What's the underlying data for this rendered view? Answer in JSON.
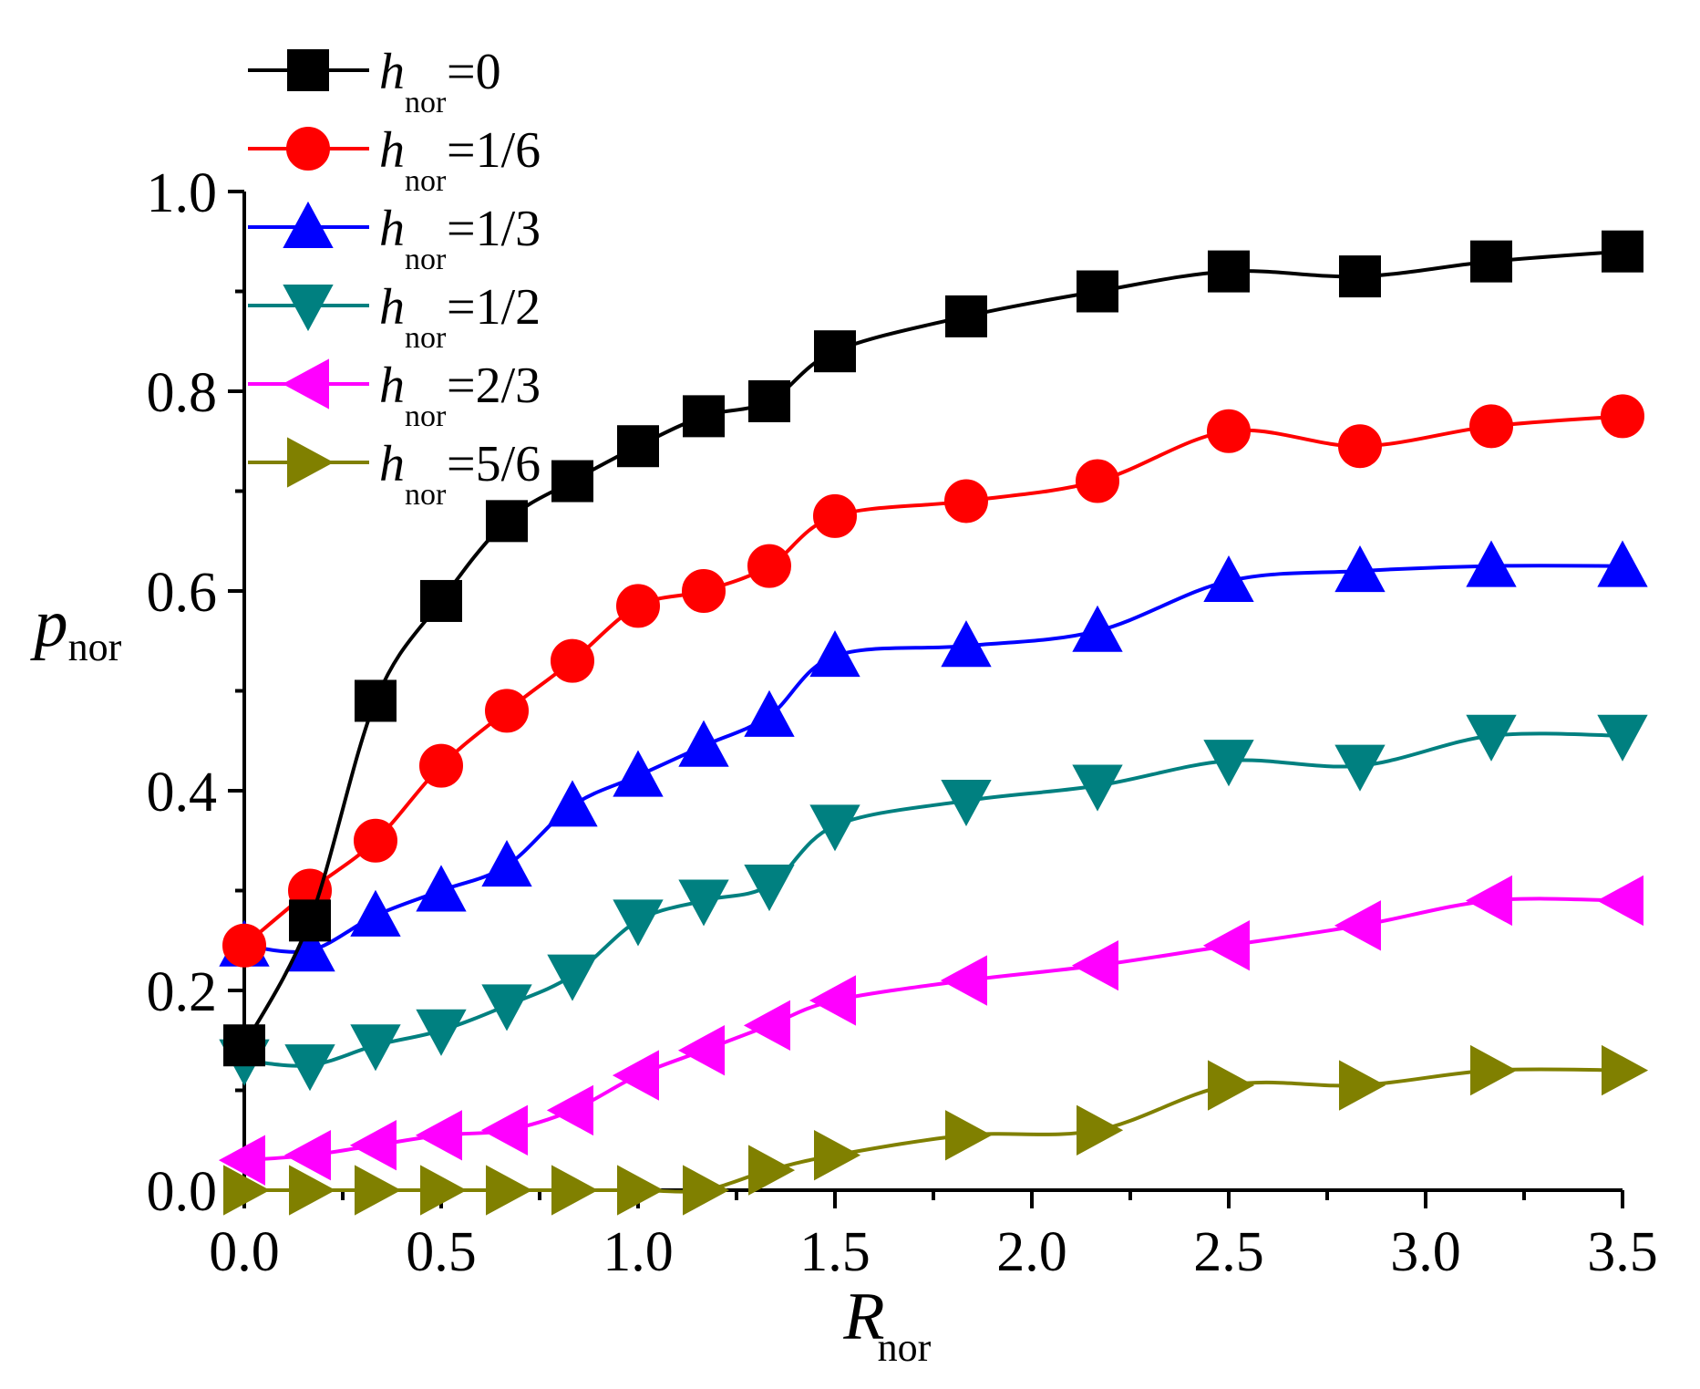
{
  "chart_data": {
    "type": "line",
    "title": "",
    "xlabel": {
      "main": "R",
      "sub": "nor"
    },
    "ylabel": {
      "main": "p",
      "sub": "nor"
    },
    "xlim": [
      0,
      3.5
    ],
    "ylim": [
      0,
      1.0
    ],
    "xticks": [
      "0.0",
      "0.5",
      "1.0",
      "1.5",
      "2.0",
      "2.5",
      "3.0",
      "3.5"
    ],
    "yticks": [
      "0.0",
      "0.2",
      "0.4",
      "0.6",
      "0.8",
      "1.0"
    ],
    "grid": false,
    "legend_position": "top-left",
    "x": [
      0,
      0.1667,
      0.3333,
      0.5,
      0.6667,
      0.8333,
      1.0,
      1.1667,
      1.3333,
      1.5,
      1.8333,
      2.1667,
      2.5,
      2.8333,
      3.1667,
      3.5
    ],
    "series": [
      {
        "name": "h_nor=0",
        "legend": {
          "h": "h",
          "sub": "nor",
          "val": "=0"
        },
        "color": "#000000",
        "marker": "square",
        "values": [
          0.145,
          0.27,
          0.49,
          0.59,
          0.67,
          0.71,
          0.745,
          0.775,
          0.79,
          0.84,
          0.875,
          0.9,
          0.92,
          0.915,
          0.93,
          0.94
        ]
      },
      {
        "name": "h_nor=1/6",
        "legend": {
          "h": "h",
          "sub": "nor",
          "val": "=1/6"
        },
        "color": "#ff0000",
        "marker": "circle",
        "values": [
          0.245,
          0.3,
          0.35,
          0.425,
          0.48,
          0.53,
          0.585,
          0.6,
          0.625,
          0.675,
          0.69,
          0.71,
          0.76,
          0.745,
          0.765,
          0.775
        ]
      },
      {
        "name": "h_nor=1/3",
        "legend": {
          "h": "h",
          "sub": "nor",
          "val": "=1/3"
        },
        "color": "#0000ff",
        "marker": "triangle-up",
        "values": [
          0.245,
          0.24,
          0.275,
          0.3,
          0.325,
          0.385,
          0.415,
          0.445,
          0.475,
          0.535,
          0.545,
          0.56,
          0.61,
          0.62,
          0.625,
          0.625
        ]
      },
      {
        "name": "h_nor=1/2",
        "legend": {
          "h": "h",
          "sub": "nor",
          "val": "=1/2"
        },
        "color": "#008080",
        "marker": "triangle-down",
        "values": [
          0.13,
          0.125,
          0.145,
          0.16,
          0.185,
          0.215,
          0.27,
          0.29,
          0.305,
          0.365,
          0.39,
          0.405,
          0.43,
          0.425,
          0.455,
          0.455
        ]
      },
      {
        "name": "h_nor=2/3",
        "legend": {
          "h": "h",
          "sub": "nor",
          "val": "=2/3"
        },
        "color": "#ff00ff",
        "marker": "triangle-left",
        "values": [
          0.03,
          0.035,
          0.045,
          0.055,
          0.06,
          0.08,
          0.115,
          0.14,
          0.165,
          0.19,
          0.21,
          0.225,
          0.245,
          0.265,
          0.29,
          0.29
        ]
      },
      {
        "name": "h_nor=5/6",
        "legend": {
          "h": "h",
          "sub": "nor",
          "val": "=5/6"
        },
        "color": "#808000",
        "marker": "triangle-right",
        "values": [
          0.0,
          0.0,
          0.0,
          0.0,
          0.0,
          0.0,
          0.0,
          0.0,
          0.02,
          0.035,
          0.055,
          0.06,
          0.105,
          0.105,
          0.12,
          0.12
        ]
      }
    ]
  }
}
